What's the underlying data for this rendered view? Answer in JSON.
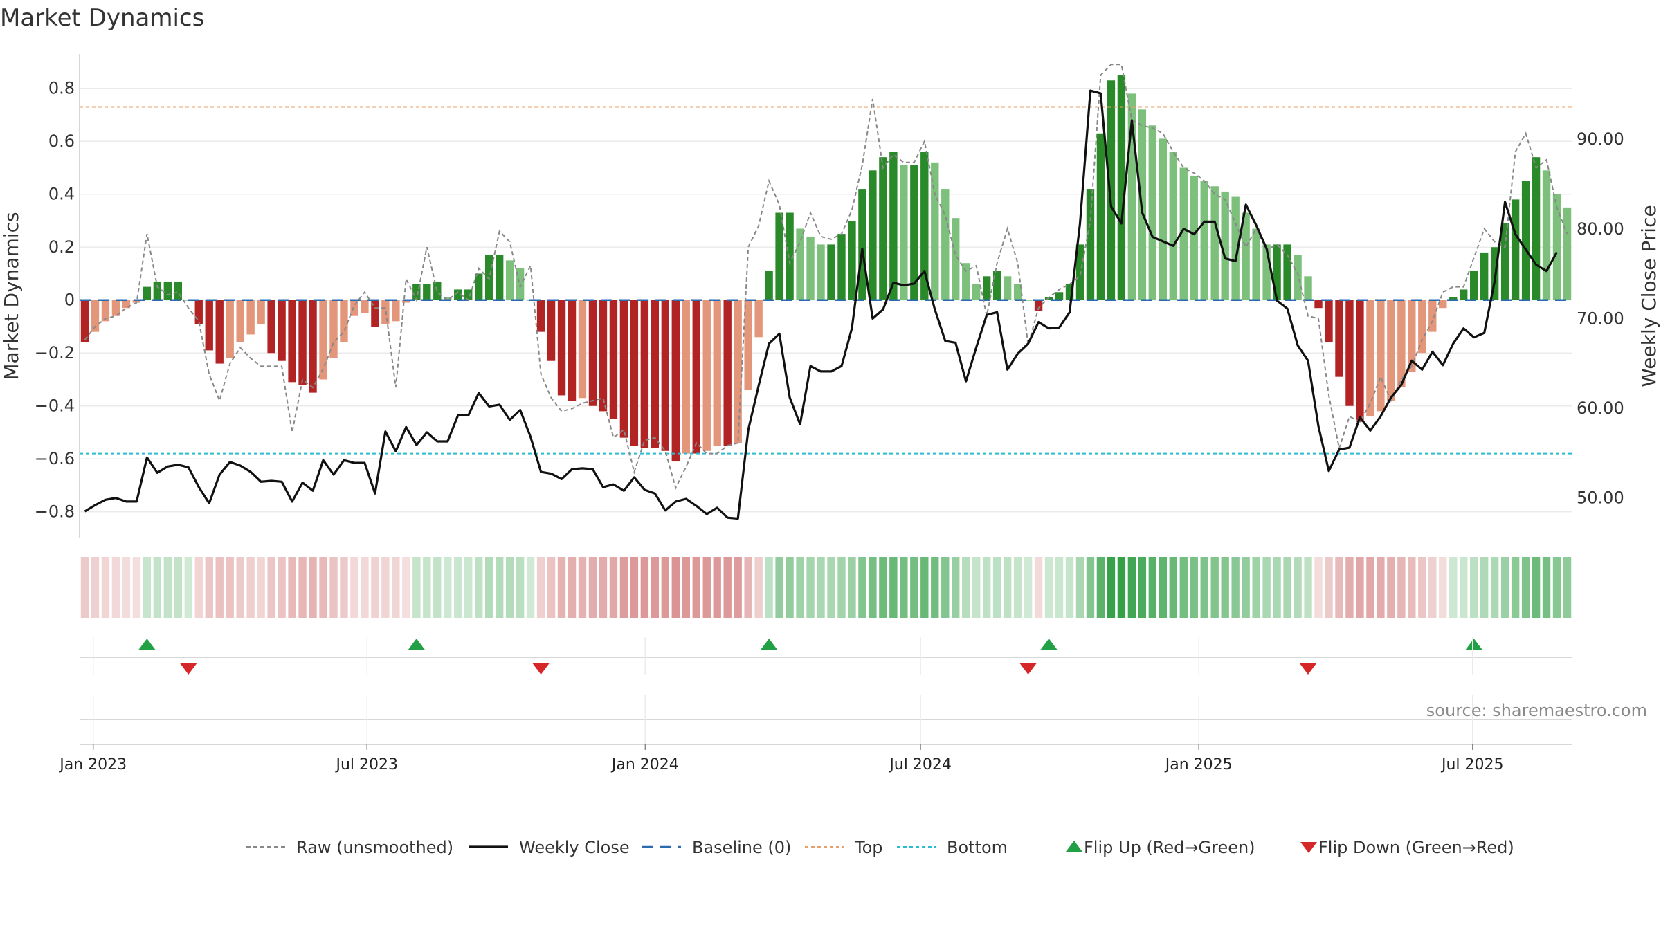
{
  "title": "Market Dynamics",
  "source": "source: sharemaestro.com",
  "colors": {
    "strong_red": "#b22424",
    "weak_red": "#e4967a",
    "strong_green": "#2a8a2a",
    "weak_green": "#7cc07c",
    "close": "#111111",
    "raw": "#888888",
    "baseline": "#2b6cb0",
    "top": "#e8a06a",
    "bottom": "#2bbcd4",
    "flip_up": "#22a045",
    "flip_down": "#d62728"
  },
  "chart_data": {
    "type": "bar",
    "title": "Market Dynamics",
    "ylabel": "Market Dynamics",
    "y2label": "Weekly Close Price",
    "ylim": [
      -0.9,
      0.93
    ],
    "y2lim": [
      45.5,
      99.5
    ],
    "yticks": [
      -0.8,
      -0.6,
      -0.4,
      -0.2,
      0,
      0.2,
      0.4,
      0.6,
      0.8
    ],
    "ytick_labels": [
      "−0.8",
      "−0.6",
      "−0.4",
      "−0.2",
      "0",
      "0.2",
      "0.4",
      "0.6",
      "0.8"
    ],
    "y2ticks": [
      50,
      60,
      70,
      80,
      90
    ],
    "y2tick_labels": [
      "50.00",
      "60.00",
      "70.00",
      "80.00",
      "90.00"
    ],
    "x_start": "2022-12-23",
    "x_end": "2025-09-05",
    "xticks": [
      {
        "date": "2023-01-01",
        "label": "Jan 2023"
      },
      {
        "date": "2023-07-01",
        "label": "Jul 2023"
      },
      {
        "date": "2024-01-01",
        "label": "Jan 2024"
      },
      {
        "date": "2024-07-01",
        "label": "Jul 2024"
      },
      {
        "date": "2025-01-01",
        "label": "Jan 2025"
      },
      {
        "date": "2025-07-01",
        "label": "Jul 2025"
      }
    ],
    "top_level": 0.73,
    "bottom_level": -0.58,
    "baseline": 0,
    "grid": true,
    "series": [
      {
        "name": "Market Dynamics",
        "values": [
          -0.16,
          -0.12,
          -0.08,
          -0.06,
          -0.03,
          -0.01,
          0.05,
          0.07,
          0.07,
          0.07,
          0.0,
          -0.09,
          -0.19,
          -0.24,
          -0.22,
          -0.16,
          -0.13,
          -0.09,
          -0.2,
          -0.23,
          -0.31,
          -0.32,
          -0.35,
          -0.3,
          -0.22,
          -0.16,
          -0.06,
          -0.05,
          -0.1,
          -0.09,
          -0.08,
          -0.01,
          0.06,
          0.06,
          0.07,
          0.01,
          0.04,
          0.04,
          0.1,
          0.17,
          0.17,
          0.15,
          0.12,
          0.0,
          -0.12,
          -0.23,
          -0.36,
          -0.38,
          -0.37,
          -0.4,
          -0.42,
          -0.45,
          -0.52,
          -0.55,
          -0.56,
          -0.56,
          -0.57,
          -0.61,
          -0.58,
          -0.58,
          -0.57,
          -0.55,
          -0.55,
          -0.54,
          -0.34,
          -0.14,
          0.11,
          0.33,
          0.33,
          0.27,
          0.24,
          0.21,
          0.21,
          0.25,
          0.3,
          0.42,
          0.49,
          0.54,
          0.56,
          0.51,
          0.51,
          0.56,
          0.52,
          0.42,
          0.31,
          0.14,
          0.06,
          0.09,
          0.11,
          0.09,
          0.06,
          0.0,
          -0.04,
          0.01,
          0.03,
          0.06,
          0.21,
          0.42,
          0.63,
          0.83,
          0.85,
          0.78,
          0.72,
          0.66,
          0.61,
          0.56,
          0.5,
          0.47,
          0.45,
          0.43,
          0.41,
          0.39,
          0.33,
          0.27,
          0.21,
          0.21,
          0.21,
          0.17,
          0.09,
          -0.03,
          -0.16,
          -0.29,
          -0.4,
          -0.46,
          -0.44,
          -0.42,
          -0.38,
          -0.33,
          -0.27,
          -0.2,
          -0.12,
          -0.03,
          0.01,
          0.04,
          0.11,
          0.18,
          0.2,
          0.29,
          0.38,
          0.45,
          0.54,
          0.49,
          0.4,
          0.35
        ]
      },
      {
        "name": "Raw (unsmoothed)",
        "values": [
          -0.15,
          -0.1,
          -0.07,
          -0.06,
          -0.03,
          -0.01,
          0.25,
          0.05,
          0.02,
          0.03,
          -0.03,
          -0.08,
          -0.28,
          -0.38,
          -0.24,
          -0.18,
          -0.22,
          -0.25,
          -0.25,
          -0.25,
          -0.5,
          -0.3,
          -0.33,
          -0.26,
          -0.16,
          -0.12,
          -0.02,
          0.03,
          -0.03,
          -0.03,
          -0.33,
          0.08,
          0.0,
          0.2,
          0.03,
          0.0,
          0.03,
          0.0,
          0.12,
          0.08,
          0.26,
          0.22,
          0.05,
          0.13,
          -0.28,
          -0.37,
          -0.42,
          -0.41,
          -0.39,
          -0.38,
          -0.37,
          -0.52,
          -0.49,
          -0.65,
          -0.53,
          -0.52,
          -0.57,
          -0.71,
          -0.63,
          -0.54,
          -0.58,
          -0.58,
          -0.55,
          -0.54,
          0.2,
          0.28,
          0.45,
          0.36,
          0.14,
          0.22,
          0.33,
          0.24,
          0.23,
          0.25,
          0.34,
          0.51,
          0.76,
          0.5,
          0.55,
          0.52,
          0.52,
          0.6,
          0.4,
          0.32,
          0.17,
          0.11,
          0.13,
          -0.06,
          0.14,
          0.27,
          0.14,
          -0.17,
          -0.03,
          0.01,
          0.04,
          0.06,
          0.09,
          0.3,
          0.85,
          0.89,
          0.89,
          0.68,
          0.66,
          0.65,
          0.63,
          0.56,
          0.5,
          0.48,
          0.45,
          0.4,
          0.38,
          0.29,
          0.2,
          0.27,
          0.19,
          0.21,
          0.17,
          0.1,
          -0.06,
          -0.07,
          -0.36,
          -0.56,
          -0.44,
          -0.46,
          -0.39,
          -0.29,
          -0.38,
          -0.3,
          -0.25,
          -0.15,
          -0.08,
          0.03,
          0.05,
          0.05,
          0.16,
          0.27,
          0.22,
          0.2,
          0.56,
          0.63,
          0.5,
          0.53,
          0.35,
          0.25
        ]
      },
      {
        "name": "Weekly Close",
        "axis": "right",
        "values": [
          48.5,
          49.2,
          49.8,
          50.0,
          49.6,
          49.6,
          54.5,
          52.8,
          53.5,
          53.7,
          53.4,
          51.2,
          49.4,
          52.6,
          54.0,
          53.6,
          52.9,
          51.8,
          51.9,
          51.8,
          49.6,
          51.7,
          50.8,
          54.2,
          52.6,
          54.2,
          53.9,
          53.9,
          50.5,
          57.4,
          55.2,
          57.9,
          55.9,
          57.3,
          56.3,
          56.3,
          59.2,
          59.2,
          61.7,
          60.2,
          60.4,
          58.7,
          59.8,
          56.8,
          52.9,
          52.7,
          52.1,
          53.2,
          53.3,
          53.2,
          51.2,
          51.5,
          50.8,
          52.3,
          50.9,
          50.5,
          48.6,
          49.6,
          49.9,
          49.1,
          48.2,
          48.9,
          47.8,
          47.7,
          57.6,
          62.5,
          67.2,
          68.3,
          61.2,
          58.2,
          64.7,
          64.1,
          64.1,
          64.7,
          68.9,
          77.8,
          70.0,
          71.0,
          74.0,
          73.7,
          73.9,
          75.3,
          71.0,
          67.5,
          67.3,
          63.0,
          66.8,
          70.4,
          70.7,
          64.3,
          66.1,
          67.2,
          69.6,
          68.9,
          69.0,
          70.7,
          80.6,
          95.4,
          95.1,
          82.5,
          80.6,
          92.1,
          81.8,
          79.1,
          78.6,
          78.1,
          80.0,
          79.4,
          80.8,
          80.8,
          76.7,
          76.4,
          82.7,
          80.4,
          77.8,
          72.0,
          71.1,
          67.0,
          65.3,
          58.0,
          53.0,
          55.4,
          55.6,
          59.0,
          57.5,
          59.1,
          61.2,
          62.6,
          65.3,
          64.3,
          66.3,
          64.8,
          67.2,
          68.9,
          67.9,
          68.4,
          74.2,
          83.0,
          79.4,
          77.7,
          76.0,
          75.3,
          77.4
        ]
      }
    ],
    "legend_position": "bottom",
    "legend": [
      "Raw (unsmoothed)",
      "Weekly Close",
      "Baseline (0)",
      "Top",
      "Bottom",
      "Flip Up (Red→Green)",
      "Flip Down (Green→Red)"
    ],
    "flips_up": [
      6,
      32,
      66,
      93,
      134
    ],
    "flips_down": [
      10,
      44,
      91,
      118
    ]
  }
}
